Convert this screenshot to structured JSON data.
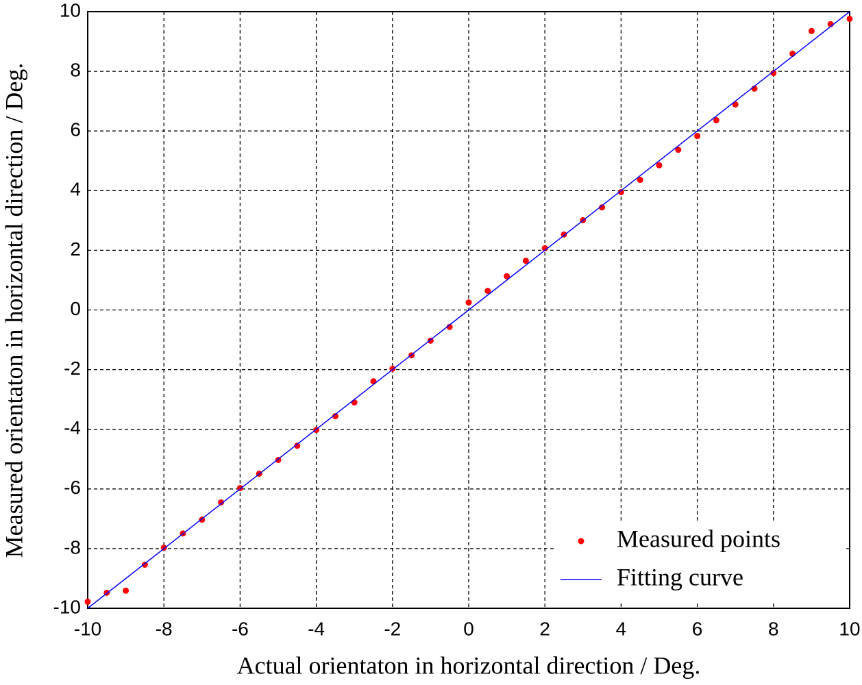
{
  "chart_data": {
    "type": "scatter",
    "xlabel": "Actual orientaton in horizontal direction / Deg.",
    "ylabel": "Measured orientaton in horizontal direction / Deg.",
    "xlim": [
      -10,
      10
    ],
    "ylim": [
      -10,
      10
    ],
    "xticks": [
      -10,
      -8,
      -6,
      -4,
      -2,
      0,
      2,
      4,
      6,
      8,
      10
    ],
    "yticks": [
      -10,
      -8,
      -6,
      -4,
      -2,
      0,
      2,
      4,
      6,
      8,
      10
    ],
    "grid": true,
    "legend": "lower right",
    "series": [
      {
        "name": "Measured points",
        "color": "#ff0000",
        "type": "scatter",
        "x": [
          -10,
          -9.5,
          -9,
          -8.5,
          -8,
          -7.5,
          -7,
          -6.5,
          -6,
          -5.5,
          -5,
          -4.5,
          -4,
          -3.5,
          -3,
          -2.5,
          -2,
          -1.5,
          -1,
          -0.5,
          0,
          0.5,
          1,
          1.5,
          2,
          2.5,
          3,
          3.5,
          4,
          4.5,
          5,
          5.5,
          6,
          6.5,
          7,
          7.5,
          8,
          8.5,
          9,
          9.5,
          10
        ],
        "values": [
          -9.78,
          -9.48,
          -9.41,
          -8.54,
          -7.97,
          -7.49,
          -7.03,
          -6.45,
          -5.97,
          -5.49,
          -5.03,
          -4.55,
          -4.02,
          -3.56,
          -3.1,
          -2.39,
          -1.97,
          -1.52,
          -1.03,
          -0.57,
          0.25,
          0.64,
          1.13,
          1.65,
          2.07,
          2.53,
          3.01,
          3.44,
          3.95,
          4.36,
          4.85,
          5.37,
          5.83,
          6.36,
          6.89,
          7.42,
          7.94,
          8.59,
          9.35,
          9.58,
          9.76
        ]
      },
      {
        "name": "Fitting curve",
        "color": "#0000ff",
        "type": "line",
        "x": [
          -10,
          10
        ],
        "values": [
          -10,
          10
        ]
      }
    ]
  }
}
